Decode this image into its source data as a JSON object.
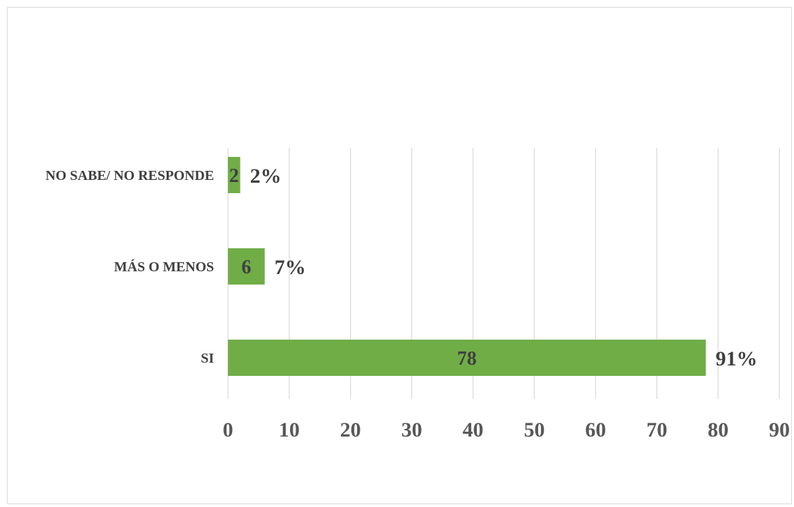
{
  "chart_data": {
    "type": "bar",
    "orientation": "horizontal",
    "categories": [
      "NO SABE/ NO RESPONDE",
      "MÁS O MENOS",
      "SI"
    ],
    "values": [
      2,
      6,
      78
    ],
    "value_labels": [
      "2",
      "6",
      "78"
    ],
    "percent_labels": [
      "2%",
      "7%",
      "91%"
    ],
    "xlim": [
      0,
      90
    ],
    "xticks": [
      0,
      10,
      20,
      30,
      40,
      50,
      60,
      70,
      80,
      90
    ],
    "grid": "vertical",
    "legend": "none",
    "colors": {
      "bar": "#70ad47",
      "grid": "#d9d9d9",
      "text": "#404040",
      "tick_text": "#595959"
    }
  }
}
